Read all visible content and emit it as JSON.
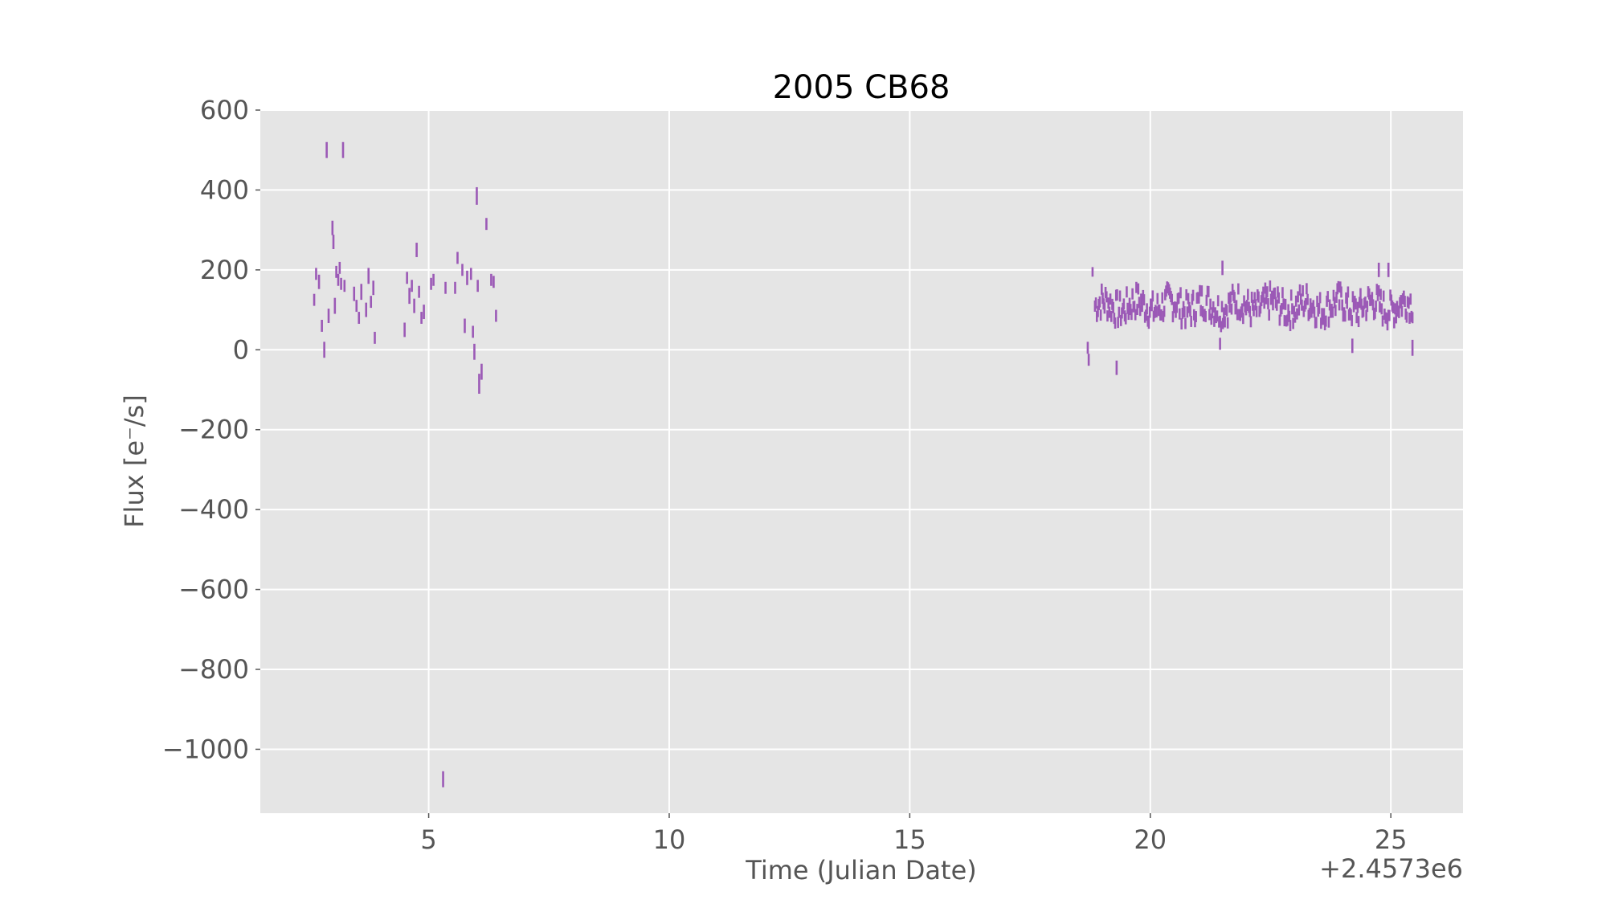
{
  "chart_data": {
    "type": "scatter",
    "title": "2005 CB68",
    "xlabel": "Time (Julian Date)",
    "ylabel": "Flux [e⁻/s]",
    "x_offset_label": "+2.4573e6",
    "xlim": [
      1.5,
      26.5
    ],
    "ylim": [
      -1160,
      600
    ],
    "xticks": [
      5,
      10,
      15,
      20,
      25
    ],
    "yticks": [
      600,
      400,
      200,
      0,
      -200,
      -400,
      -600,
      -800,
      -1000
    ],
    "xtick_labels": [
      "5",
      "10",
      "15",
      "20",
      "25"
    ],
    "ytick_labels": [
      "600",
      "400",
      "200",
      "0",
      "−200",
      "−400",
      "−600",
      "−800",
      "−1000"
    ],
    "grid": true,
    "marker": "error-bar",
    "color": "#9b59b6",
    "background": "#e5e5e5",
    "series": [
      {
        "x": [
          2.62,
          2.66,
          2.72,
          2.78,
          2.83,
          2.88,
          2.92,
          3.0,
          3.02,
          3.05,
          3.08,
          3.12,
          3.15,
          3.18,
          3.22,
          3.25,
          3.45,
          3.5,
          3.55,
          3.6,
          3.7,
          3.75,
          3.8,
          3.85,
          3.88,
          4.5,
          4.55,
          4.6,
          4.65,
          4.7,
          4.75,
          4.8,
          4.85,
          4.9,
          5.05,
          5.1,
          5.3,
          5.35,
          5.55,
          5.6,
          5.7,
          5.75,
          5.8,
          5.88,
          5.92,
          5.95,
          6.0,
          6.02,
          6.05,
          6.1,
          6.2,
          6.3,
          6.35,
          6.4
        ],
        "y": [
          125,
          190,
          170,
          60,
          0,
          500,
          85,
          305,
          270,
          110,
          195,
          175,
          205,
          165,
          500,
          160,
          140,
          110,
          80,
          145,
          100,
          185,
          120,
          155,
          30,
          50,
          180,
          135,
          160,
          110,
          250,
          145,
          80,
          95,
          165,
          175,
          -1075,
          155,
          155,
          230,
          200,
          60,
          180,
          190,
          45,
          -5,
          385,
          160,
          -85,
          -55,
          315,
          175,
          170,
          85
        ],
        "err": [
          15,
          15,
          18,
          15,
          20,
          20,
          18,
          18,
          18,
          20,
          15,
          15,
          15,
          15,
          20,
          15,
          18,
          15,
          15,
          20,
          18,
          20,
          15,
          18,
          15,
          18,
          15,
          20,
          15,
          18,
          18,
          15,
          15,
          18,
          15,
          15,
          20,
          15,
          15,
          15,
          15,
          18,
          18,
          15,
          15,
          20,
          22,
          15,
          25,
          20,
          15,
          15,
          15,
          15
        ]
      }
    ],
    "dense_segment": {
      "x_start": 18.85,
      "x_end": 25.45,
      "y_mean": 110,
      "y_amplitude": 40,
      "err": 14,
      "extra_points": [
        {
          "x": 18.7,
          "y": 5,
          "err": 15
        },
        {
          "x": 18.72,
          "y": -25,
          "err": 15
        },
        {
          "x": 18.8,
          "y": 195,
          "err": 12
        },
        {
          "x": 19.3,
          "y": -45,
          "err": 18
        },
        {
          "x": 21.45,
          "y": 15,
          "err": 15
        },
        {
          "x": 21.5,
          "y": 205,
          "err": 18
        },
        {
          "x": 24.2,
          "y": 10,
          "err": 18
        },
        {
          "x": 24.75,
          "y": 200,
          "err": 18
        },
        {
          "x": 24.95,
          "y": 200,
          "err": 18
        },
        {
          "x": 25.45,
          "y": 5,
          "err": 20
        }
      ]
    }
  }
}
